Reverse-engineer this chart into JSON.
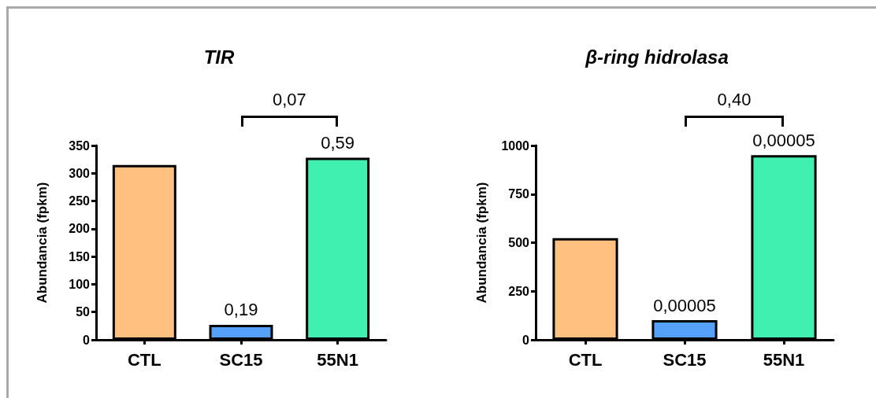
{
  "chart_data": [
    {
      "type": "bar",
      "title": "TIR",
      "ylabel": "Abundancia (fpkm)",
      "categories": [
        "CTL",
        "SC15",
        "55N1"
      ],
      "values": [
        315,
        27,
        328
      ],
      "colors": [
        "#ffc080",
        "#55a0f8",
        "#40f0b0"
      ],
      "ylim": [
        0,
        350
      ],
      "yticks": [
        0,
        50,
        100,
        150,
        200,
        250,
        300,
        350
      ],
      "grid": false,
      "annotations": [
        "0,07",
        {
          "text": "0,19",
          "x": "SC15",
          "y": 27
        },
        {
          "text": "0,59",
          "x": "55N1",
          "y": 328
        }
      ]
    },
    {
      "type": "bar",
      "title": "β-ring hidrolasa",
      "ylabel": "Abundancia (fpkm)",
      "categories": [
        "CTL",
        "SC15",
        "55N1"
      ],
      "values": [
        523,
        101,
        950
      ],
      "colors": [
        "#ffc080",
        "#55a0f8",
        "#40f0b0"
      ],
      "ylim": [
        0,
        1000
      ],
      "yticks": [
        0,
        250,
        500,
        750,
        1000
      ],
      "grid": false,
      "annotations": [
        "0,40",
        {
          "text": "0,00005",
          "x": "SC15",
          "y": 101
        },
        {
          "text": "0,00005",
          "x": "55N1",
          "y": 950
        }
      ]
    }
  ]
}
